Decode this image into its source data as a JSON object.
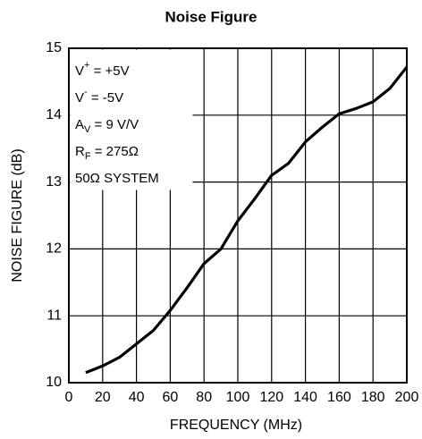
{
  "chart_data": {
    "type": "line",
    "title": "Noise Figure",
    "x_label": "FREQUENCY (MHz)",
    "y_label": "NOISE FIGURE (dB)",
    "x": [
      10,
      20,
      30,
      40,
      50,
      60,
      70,
      80,
      90,
      100,
      110,
      120,
      130,
      140,
      150,
      160,
      170,
      180,
      190,
      200
    ],
    "series": [
      {
        "color": "#000000",
        "values": [
          10.15,
          10.25,
          10.38,
          10.58,
          10.78,
          11.08,
          11.42,
          11.78,
          12.0,
          12.42,
          12.75,
          13.1,
          13.28,
          13.6,
          13.82,
          14.02,
          14.1,
          14.2,
          14.4,
          14.72
        ]
      }
    ],
    "xlim": [
      0,
      200
    ],
    "xticks": [
      0,
      20,
      40,
      60,
      80,
      100,
      120,
      140,
      160,
      180,
      200
    ],
    "ylim": [
      10,
      15
    ],
    "yticks": [
      10,
      11,
      12,
      13,
      14,
      15
    ],
    "grid": true,
    "annotations": [
      [
        {
          "text": "V"
        },
        {
          "text": "+",
          "shift": "super"
        },
        {
          "text": " = +5V"
        }
      ],
      [
        {
          "text": "V"
        },
        {
          "text": "-",
          "shift": "super"
        },
        {
          "text": " = -5V"
        }
      ],
      [
        {
          "text": "A"
        },
        {
          "text": "V",
          "shift": "sub"
        },
        {
          "text": " = 9 V/V"
        }
      ],
      [
        {
          "text": "R"
        },
        {
          "text": "F",
          "shift": "sub"
        },
        {
          "text": " = 275Ω"
        }
      ],
      [
        {
          "text": "50Ω SYSTEM"
        }
      ]
    ]
  }
}
